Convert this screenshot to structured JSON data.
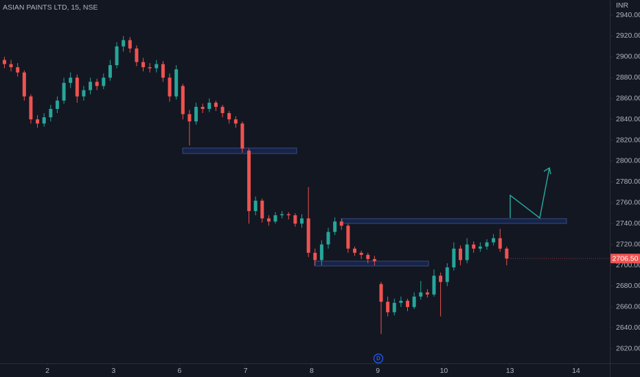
{
  "chart_data": {
    "type": "candlestick",
    "title": "ASIAN PAINTS LTD, 15, NSE",
    "y_axis_label": "INR",
    "last_price_label": "2706.50",
    "up_color": "#26a69a",
    "down_color": "#ef5350",
    "grid": false,
    "xlim": [
      -0.717,
      8.51
    ],
    "xticks": [
      {
        "value": 0,
        "label": "2"
      },
      {
        "value": 1,
        "label": "3"
      },
      {
        "value": 2,
        "label": "6"
      },
      {
        "value": 3,
        "label": "7"
      },
      {
        "value": 4,
        "label": "8"
      },
      {
        "value": 5,
        "label": "9"
      },
      {
        "value": 6,
        "label": "10"
      },
      {
        "value": 7,
        "label": "13"
      },
      {
        "value": 8,
        "label": "14"
      }
    ],
    "ylim": [
      2606,
      2954.5
    ],
    "yticks": [
      {
        "value": 2620,
        "label": "2620.00"
      },
      {
        "value": 2640,
        "label": "2640.00"
      },
      {
        "value": 2660,
        "label": "2660.00"
      },
      {
        "value": 2680,
        "label": "2680.00"
      },
      {
        "value": 2700,
        "label": "2700.00"
      },
      {
        "value": 2720,
        "label": "2720.00"
      },
      {
        "value": 2740,
        "label": "2740.00"
      },
      {
        "value": 2760,
        "label": "2760.00"
      },
      {
        "value": 2780,
        "label": "2780.00"
      },
      {
        "value": 2800,
        "label": "2800.00"
      },
      {
        "value": 2820,
        "label": "2820.00"
      },
      {
        "value": 2840,
        "label": "2840.00"
      },
      {
        "value": 2860,
        "label": "2860.00"
      },
      {
        "value": 2880,
        "label": "2880.00"
      },
      {
        "value": 2900,
        "label": "2900.00"
      },
      {
        "value": 2920,
        "label": "2920.00"
      },
      {
        "value": 2940,
        "label": "2940.00"
      }
    ],
    "x": [
      -0.65,
      -0.55,
      -0.45,
      -0.35,
      -0.25,
      -0.15,
      -0.05,
      0.05,
      0.15,
      0.25,
      0.35,
      0.45,
      0.55,
      0.65,
      0.75,
      0.85,
      0.95,
      1.05,
      1.15,
      1.25,
      1.35,
      1.45,
      1.55,
      1.65,
      1.75,
      1.85,
      1.95,
      2.05,
      2.15,
      2.25,
      2.35,
      2.45,
      2.55,
      2.65,
      2.75,
      2.85,
      2.95,
      3.05,
      3.15,
      3.25,
      3.35,
      3.45,
      3.55,
      3.65,
      3.75,
      3.85,
      3.95,
      4.05,
      4.15,
      4.25,
      4.35,
      4.45,
      4.55,
      4.65,
      4.75,
      4.85,
      4.95,
      5.05,
      5.15,
      5.25,
      5.35,
      5.45,
      5.55,
      5.65,
      5.75,
      5.85,
      5.95,
      6.05,
      6.15,
      6.25,
      6.35,
      6.45,
      6.55,
      6.65,
      6.75,
      6.85,
      6.95
    ],
    "open": [
      2897,
      2893,
      2890,
      2885,
      2862,
      2840,
      2836,
      2842,
      2850,
      2858,
      2875,
      2880,
      2862,
      2868,
      2876,
      2872,
      2880,
      2892,
      2910,
      2916,
      2908,
      2895,
      2890,
      2889,
      2893,
      2880,
      2862,
      2872,
      2845,
      2838,
      2852,
      2850,
      2856,
      2852,
      2846,
      2840,
      2836,
      2810,
      2752,
      2762,
      2745,
      2742,
      2748,
      2749,
      2748,
      2740,
      2745,
      2712,
      2705,
      2720,
      2732,
      2742,
      2738,
      2716,
      2712,
      2710,
      2706,
      2682,
      2665,
      2655,
      2664,
      2666,
      2660,
      2670,
      2674,
      2672,
      2690,
      2684,
      2698,
      2716,
      2705,
      2720,
      2716,
      2718,
      2722,
      2726,
      2716
    ],
    "high": [
      2900,
      2897,
      2894,
      2887,
      2864,
      2844,
      2846,
      2854,
      2862,
      2880,
      2885,
      2883,
      2872,
      2880,
      2879,
      2884,
      2897,
      2914,
      2920,
      2919,
      2911,
      2899,
      2894,
      2897,
      2896,
      2884,
      2892,
      2874,
      2849,
      2856,
      2855,
      2860,
      2858,
      2854,
      2848,
      2843,
      2838,
      2812,
      2766,
      2764,
      2748,
      2751,
      2752,
      2751,
      2750,
      2749,
      2775,
      2716,
      2724,
      2736,
      2746,
      2745,
      2740,
      2718,
      2714,
      2712,
      2709,
      2684,
      2670,
      2668,
      2670,
      2668,
      2674,
      2685,
      2677,
      2696,
      2693,
      2702,
      2722,
      2719,
      2726,
      2723,
      2722,
      2725,
      2730,
      2735,
      2718
    ],
    "low": [
      2889,
      2886,
      2881,
      2858,
      2836,
      2832,
      2833,
      2838,
      2846,
      2855,
      2870,
      2856,
      2858,
      2864,
      2868,
      2869,
      2877,
      2889,
      2905,
      2904,
      2891,
      2886,
      2885,
      2885,
      2876,
      2857,
      2859,
      2840,
      2815,
      2835,
      2846,
      2847,
      2848,
      2842,
      2836,
      2832,
      2808,
      2740,
      2748,
      2741,
      2738,
      2740,
      2745,
      2744,
      2737,
      2736,
      2708,
      2700,
      2700,
      2716,
      2729,
      2734,
      2712,
      2709,
      2706,
      2702,
      2700,
      2634,
      2651,
      2652,
      2660,
      2656,
      2658,
      2667,
      2669,
      2670,
      2651,
      2680,
      2695,
      2700,
      2702,
      2712,
      2713,
      2715,
      2719,
      2713,
      2700
    ],
    "close": [
      2893,
      2890,
      2885,
      2862,
      2840,
      2836,
      2842,
      2850,
      2858,
      2875,
      2880,
      2862,
      2868,
      2876,
      2872,
      2880,
      2892,
      2910,
      2916,
      2908,
      2895,
      2890,
      2889,
      2893,
      2880,
      2862,
      2888,
      2845,
      2838,
      2852,
      2850,
      2856,
      2852,
      2846,
      2840,
      2836,
      2812,
      2752,
      2762,
      2745,
      2742,
      2748,
      2749,
      2748,
      2740,
      2745,
      2712,
      2705,
      2720,
      2732,
      2742,
      2738,
      2716,
      2712,
      2710,
      2706,
      2704,
      2665,
      2655,
      2664,
      2666,
      2660,
      2670,
      2674,
      2672,
      2690,
      2684,
      2698,
      2716,
      2705,
      2720,
      2716,
      2718,
      2722,
      2726,
      2716,
      2706.5
    ]
  }
}
